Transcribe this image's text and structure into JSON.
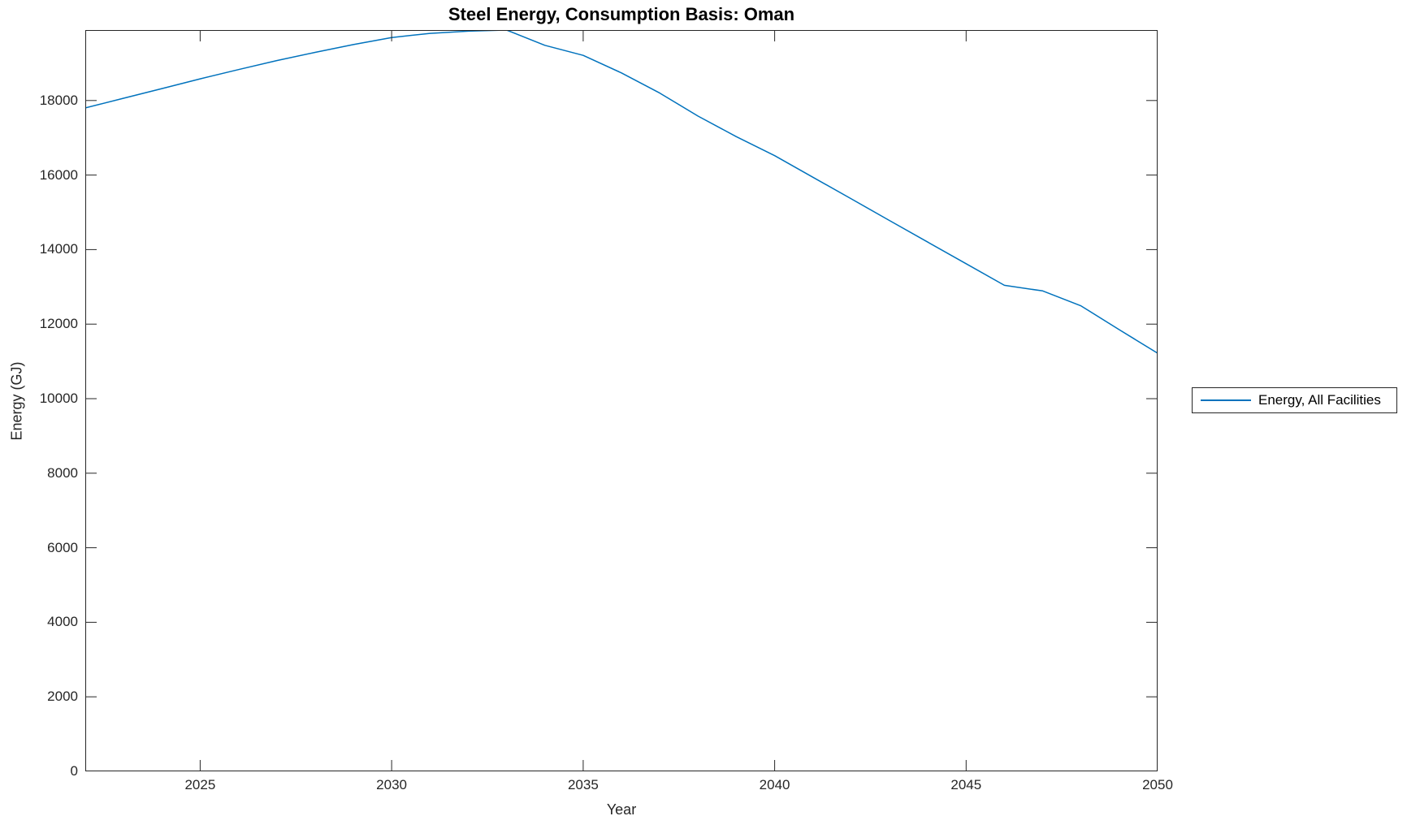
{
  "colors": {
    "background": "#ffffff",
    "axis": "#262626",
    "line": "#0072BD",
    "title_text": "#000000",
    "tick_text": "#262626"
  },
  "legend": {
    "label": "Energy, All Facilities"
  },
  "chart_data": {
    "type": "line",
    "title": "Steel Energy, Consumption Basis: Oman",
    "xlabel": "Year",
    "ylabel": "Energy (GJ)",
    "xlim": [
      2022,
      2050
    ],
    "ylim": [
      0,
      19890
    ],
    "x_ticks": [
      2025,
      2030,
      2035,
      2040,
      2045,
      2050
    ],
    "y_ticks": [
      0,
      2000,
      4000,
      6000,
      8000,
      10000,
      12000,
      14000,
      16000,
      18000
    ],
    "grid": false,
    "box": true,
    "tick_direction": "in",
    "axis_color": "#262626",
    "legend": {
      "position": "outside-right",
      "entries": [
        {
          "label": "Energy, All Facilities",
          "color": "#0072BD"
        }
      ]
    },
    "series": [
      {
        "name": "Energy, All Facilities",
        "color": "#0072BD",
        "x": [
          2022,
          2023,
          2024,
          2025,
          2026,
          2027,
          2028,
          2029,
          2030,
          2031,
          2032,
          2033,
          2034,
          2035,
          2036,
          2037,
          2038,
          2039,
          2040,
          2041,
          2042,
          2043,
          2044,
          2045,
          2046,
          2047,
          2048,
          2049,
          2050
        ],
        "values": [
          17800,
          18060,
          18320,
          18580,
          18830,
          19070,
          19290,
          19500,
          19690,
          19800,
          19860,
          19890,
          19480,
          19210,
          18740,
          18200,
          17580,
          17030,
          16520,
          15940,
          15360,
          14780,
          14200,
          13620,
          13040,
          12890,
          12490,
          11850,
          11220
        ]
      }
    ]
  }
}
